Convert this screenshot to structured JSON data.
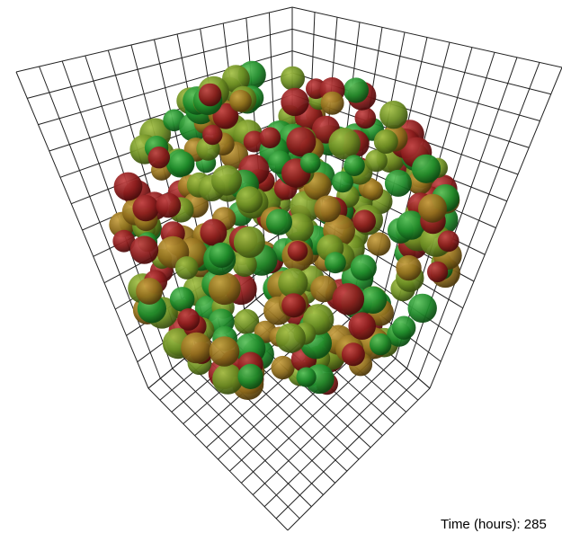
{
  "status": {
    "time_label": "Time (hours): 285"
  }
}
